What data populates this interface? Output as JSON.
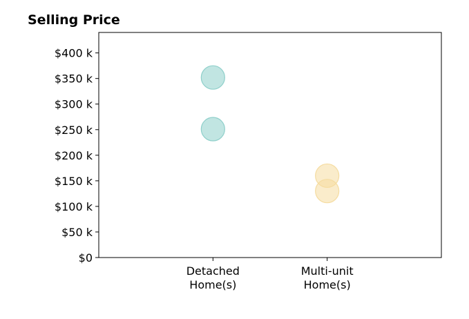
{
  "chart_data": {
    "type": "scatter",
    "title": "Selling Price",
    "xlabel": "",
    "ylabel": "",
    "categories": [
      "Detached\nHome(s)",
      "Multi-unit\nHome(s)"
    ],
    "ylim": [
      0,
      440000
    ],
    "yticks": [
      0,
      50000,
      100000,
      150000,
      200000,
      250000,
      300000,
      350000,
      400000
    ],
    "ytick_labels": [
      "$0",
      "$50 k",
      "$100 k",
      "$150 k",
      "$200 k",
      "$250 k",
      "$300 k",
      "$350 k",
      "$400 k"
    ],
    "grid": false,
    "legend": false,
    "series": [
      {
        "category": "Detached\nHome(s)",
        "color": "#8ecfca",
        "values": [
          352000,
          251000
        ]
      },
      {
        "category": "Multi-unit\nHome(s)",
        "color": "#f5dca0",
        "values": [
          160000,
          130000
        ]
      }
    ]
  }
}
